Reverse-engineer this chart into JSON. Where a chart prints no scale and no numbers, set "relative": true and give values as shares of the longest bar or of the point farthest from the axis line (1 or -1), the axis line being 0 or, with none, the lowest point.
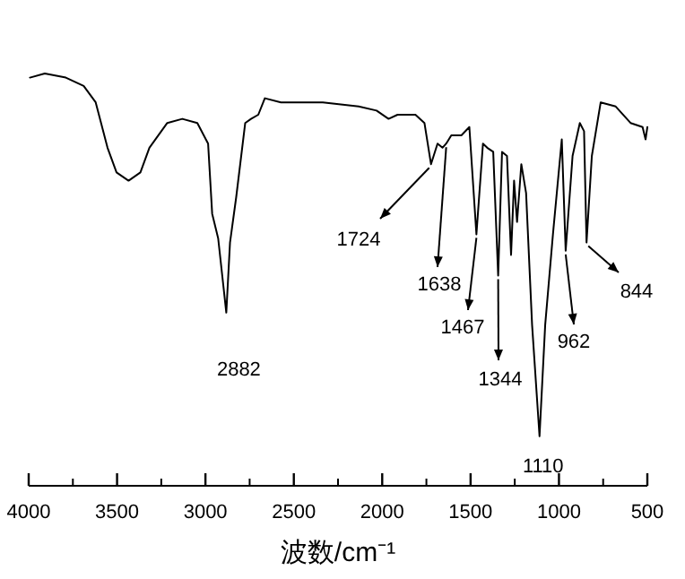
{
  "chart_data": {
    "type": "line",
    "relative": true,
    "xlabel": "波数/cm⁻¹",
    "xlim": [
      4000,
      500
    ],
    "xticks": [
      4000,
      3500,
      3000,
      2500,
      2000,
      1500,
      1000,
      500
    ],
    "series": [
      {
        "color": "#000000",
        "x": [
          3993,
          3909,
          3790,
          3689,
          3621,
          3554,
          3503,
          3435,
          3368,
          3317,
          3216,
          3131,
          3046,
          2985,
          2962,
          2928,
          2882,
          2861,
          2826,
          2775,
          2742,
          2701,
          2664,
          2573,
          2336,
          2133,
          2032,
          1964,
          1913,
          1812,
          1761,
          1724,
          1687,
          1659,
          1638,
          1609,
          1552,
          1507,
          1467,
          1430,
          1406,
          1372,
          1344,
          1322,
          1294,
          1271,
          1254,
          1237,
          1213,
          1186,
          1152,
          1110,
          1078,
          1034,
          984,
          962,
          923,
          882,
          858,
          844,
          814,
          764,
          679,
          595,
          527,
          510,
          500
        ],
        "values": [
          0.99,
          1.0,
          0.99,
          0.97,
          0.93,
          0.82,
          0.76,
          0.74,
          0.76,
          0.82,
          0.88,
          0.89,
          0.88,
          0.83,
          0.66,
          0.6,
          0.42,
          0.59,
          0.7,
          0.88,
          0.89,
          0.9,
          0.94,
          0.93,
          0.93,
          0.92,
          0.91,
          0.89,
          0.9,
          0.9,
          0.88,
          0.78,
          0.83,
          0.82,
          0.83,
          0.85,
          0.85,
          0.87,
          0.61,
          0.83,
          0.82,
          0.81,
          0.51,
          0.81,
          0.8,
          0.56,
          0.74,
          0.64,
          0.78,
          0.71,
          0.39,
          0.12,
          0.39,
          0.61,
          0.84,
          0.57,
          0.8,
          0.88,
          0.86,
          0.59,
          0.8,
          0.93,
          0.92,
          0.88,
          0.87,
          0.84,
          0.87
        ]
      }
    ],
    "annotations": [
      {
        "text": "2882",
        "x": 2882,
        "y": 0.42
      },
      {
        "text": "1724",
        "x": 1724,
        "y": 0.78
      },
      {
        "text": "1638",
        "x": 1638,
        "y": 0.83
      },
      {
        "text": "1467",
        "x": 1467,
        "y": 0.61
      },
      {
        "text": "1344",
        "x": 1344,
        "y": 0.51
      },
      {
        "text": "1110",
        "x": 1110,
        "y": 0.12
      },
      {
        "text": "962",
        "x": 962,
        "y": 0.57
      },
      {
        "text": "844",
        "x": 844,
        "y": 0.59
      }
    ]
  }
}
